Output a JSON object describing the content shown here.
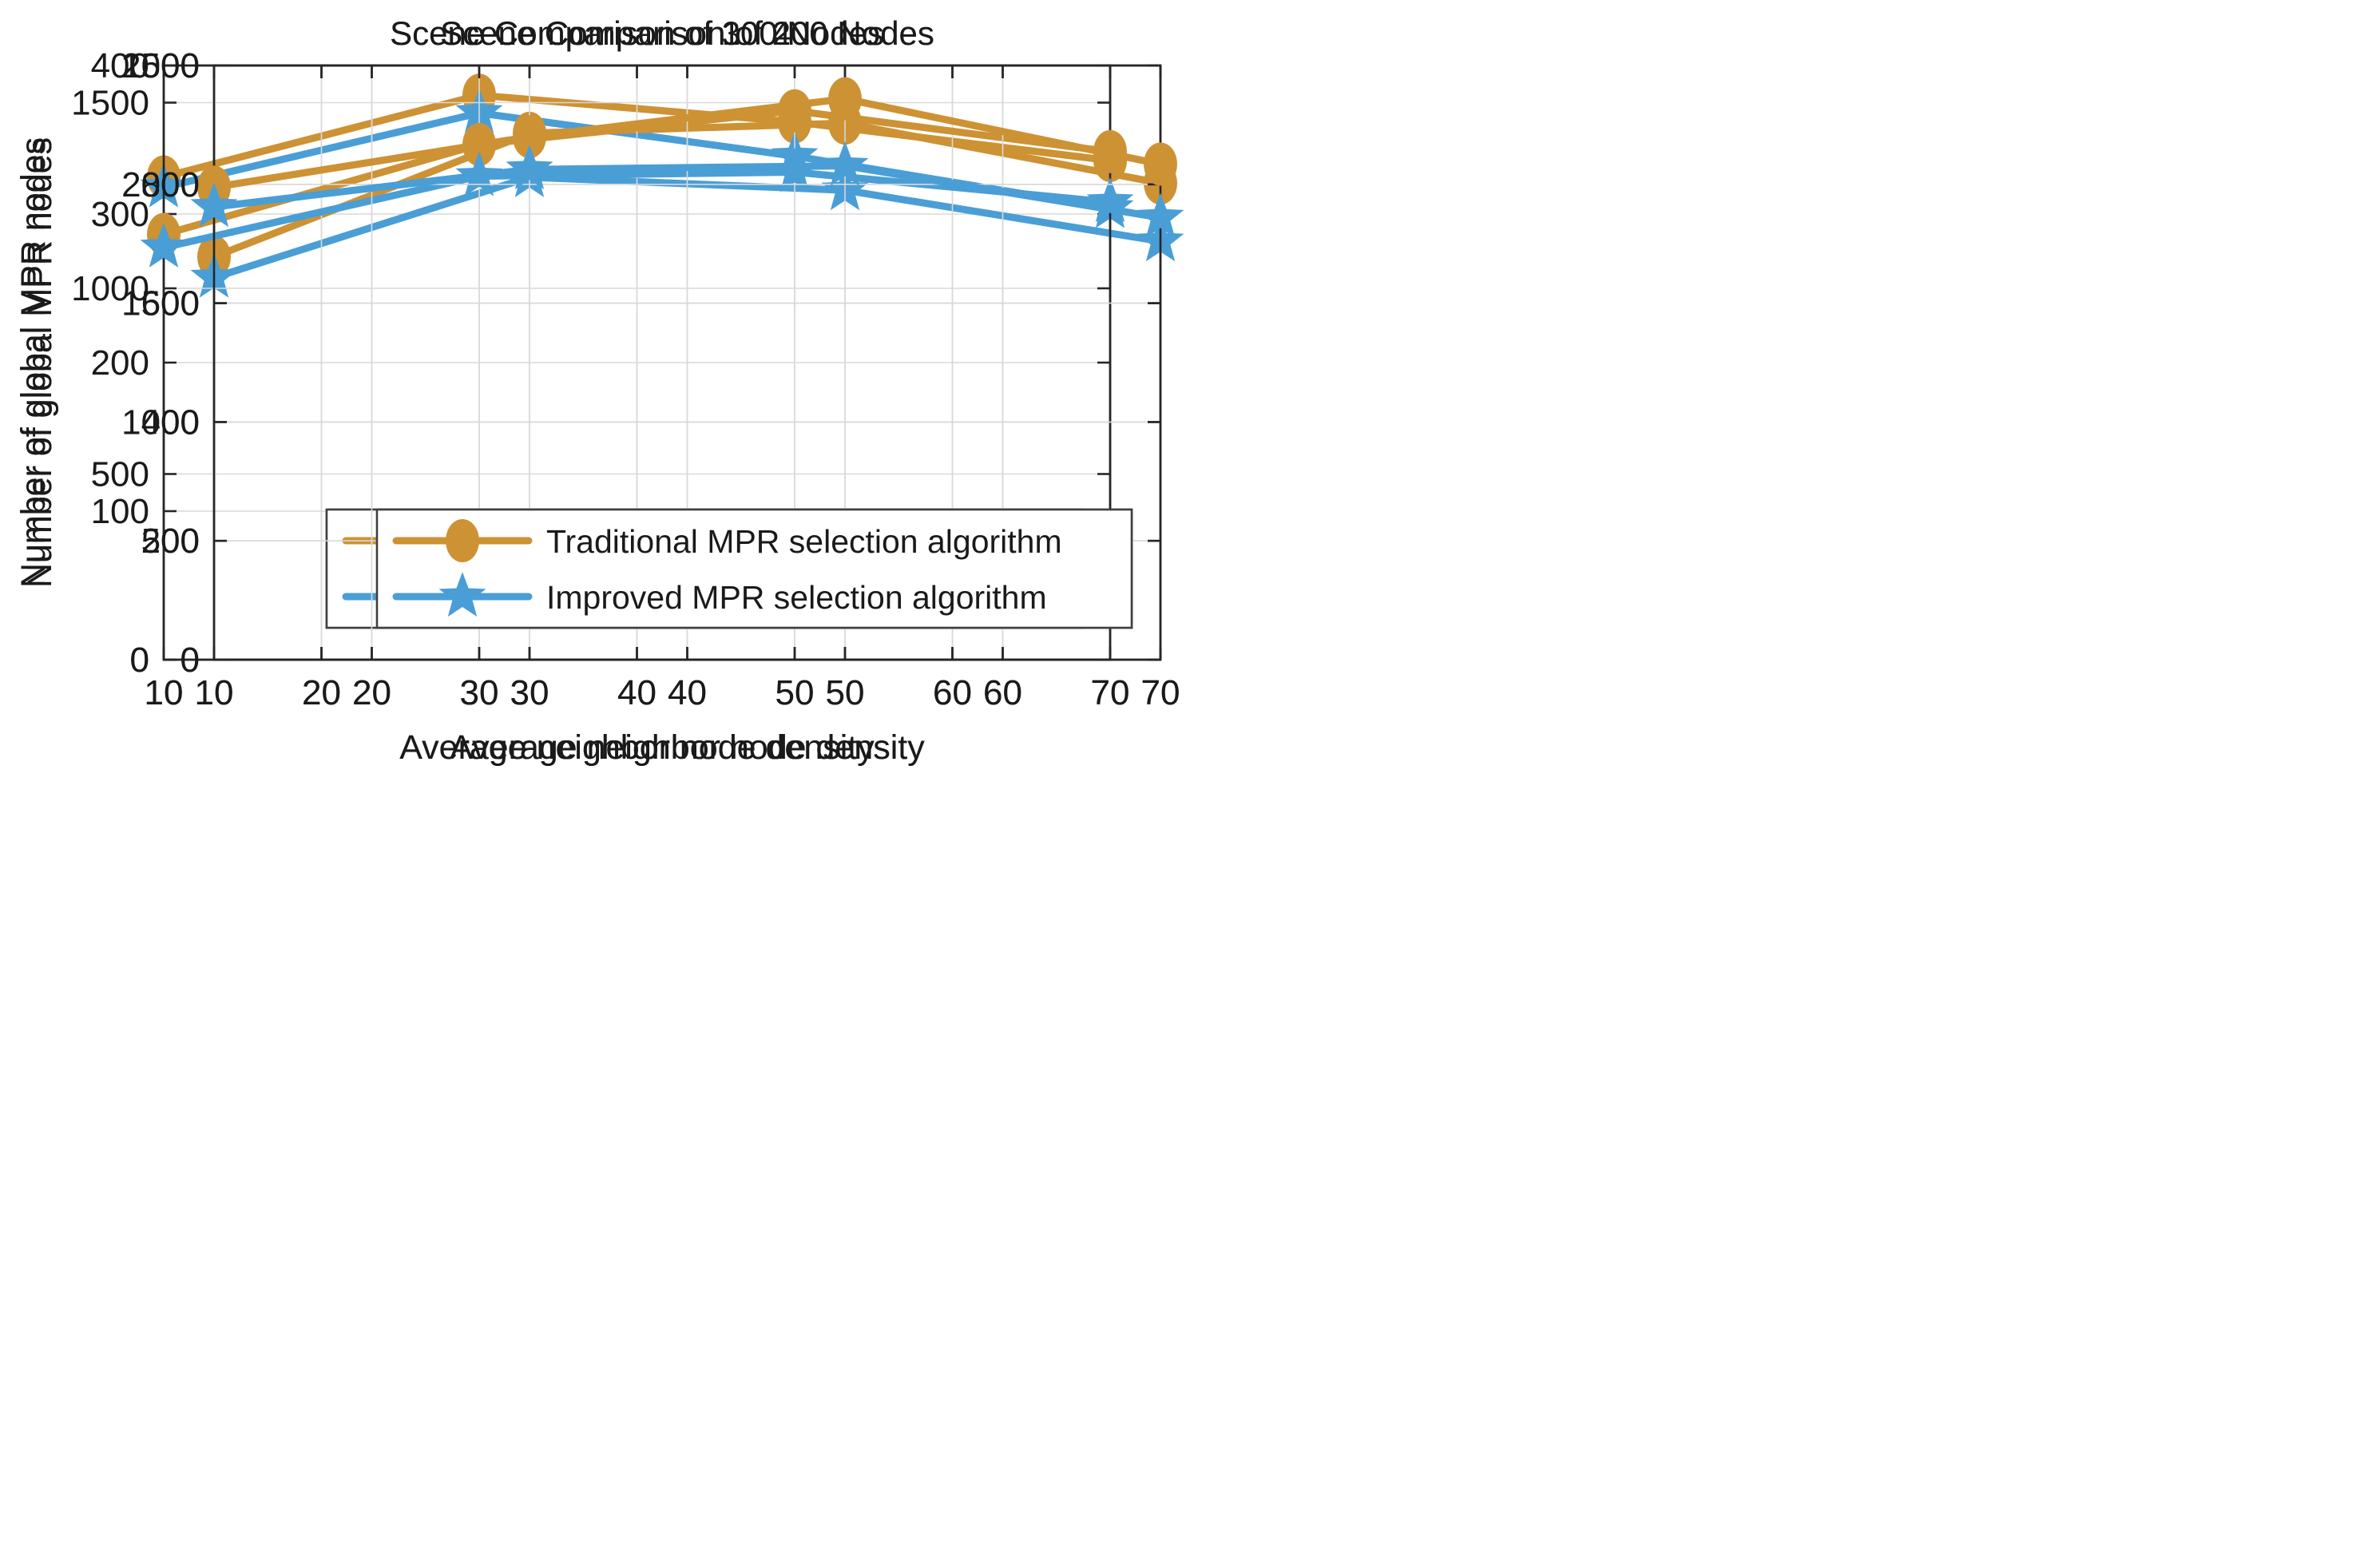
{
  "figure": {
    "background": "#ffffff",
    "text_color": "#1a1a1a",
    "axis_color": "#262626",
    "grid_color": "#d9d9d9",
    "legend_border_color": "#404040",
    "legend_background": "#ffffff"
  },
  "colors": {
    "traditional": "#cd9234",
    "improved": "#4a9ed6"
  },
  "chart_data": [
    {
      "type": "line",
      "title": "Scene Comparison of 100 Nodes",
      "xlabel": "Average neighbor node density",
      "ylabel": "Number of global MPR nodes",
      "x": [
        10,
        30,
        50,
        70
      ],
      "xticks": [
        10,
        20,
        30,
        40,
        50,
        60,
        70
      ],
      "xlim": [
        10,
        70
      ],
      "yticks": [
        0,
        100,
        200,
        300,
        400
      ],
      "ylim": [
        0,
        400
      ],
      "grid": true,
      "legend_position": "inside-bottom-right",
      "series": [
        {
          "name": "Traditional MPR selection algorithm",
          "marker": "circle",
          "color_key": "traditional",
          "values": [
            325,
            380,
            362,
            336
          ]
        },
        {
          "name": "Improved MPR selection algorithm",
          "marker": "star",
          "color_key": "improved",
          "values": [
            318,
            368,
            339,
            304
          ]
        }
      ]
    },
    {
      "type": "line",
      "title": "Scene Comparison of 200 Nodes",
      "xlabel": "Average neighbor node density",
      "ylabel": "Number of global MPR nodes",
      "x": [
        10,
        30,
        50,
        70
      ],
      "xticks": [
        10,
        20,
        30,
        40,
        50,
        60,
        70
      ],
      "xlim": [
        10,
        70
      ],
      "yticks": [
        0,
        200,
        400,
        600,
        800,
        1000
      ],
      "ylim": [
        0,
        1000
      ],
      "grid": true,
      "legend_position": "inside-bottom-right",
      "series": [
        {
          "name": "Traditional MPR selection algorithm",
          "marker": "circle",
          "color_key": "traditional",
          "values": [
            678,
            886,
            903,
            802
          ]
        },
        {
          "name": "Improved MPR selection algorithm",
          "marker": "star",
          "color_key": "improved",
          "values": [
            643,
            812,
            790,
            704
          ]
        }
      ]
    },
    {
      "type": "line",
      "title": "Scene Comparison of 300 Nodes",
      "xlabel": "Average neighbor node density",
      "ylabel": "Number of global MPR nodes",
      "x": [
        10,
        30,
        50,
        70
      ],
      "xticks": [
        10,
        20,
        30,
        40,
        50,
        60,
        70
      ],
      "xlim": [
        10,
        70
      ],
      "yticks": [
        0,
        500,
        1000,
        1500
      ],
      "ylim": [
        0,
        1600
      ],
      "grid": true,
      "legend_position": "inside-bottom-right",
      "series": [
        {
          "name": "Traditional MPR selection algorithm",
          "marker": "circle",
          "color_key": "traditional",
          "values": [
            1145,
            1387,
            1478,
            1368
          ]
        },
        {
          "name": "Improved MPR selection algorithm",
          "marker": "star",
          "color_key": "improved",
          "values": [
            1110,
            1302,
            1313,
            1232
          ]
        }
      ]
    },
    {
      "type": "line",
      "title": "Scene Comparison of 400 Nodes",
      "xlabel": "Average neighbor node density",
      "ylabel": "Number of global MPR nodes",
      "x": [
        10,
        30,
        50,
        70
      ],
      "xticks": [
        10,
        20,
        30,
        40,
        50,
        60,
        70
      ],
      "xlim": [
        10,
        70
      ],
      "yticks": [
        0,
        500,
        1000,
        1500,
        2000,
        2500
      ],
      "ylim": [
        0,
        2500
      ],
      "grid": true,
      "legend_position": "inside-bottom-right",
      "series": [
        {
          "name": "Traditional MPR selection algorithm",
          "marker": "circle",
          "color_key": "traditional",
          "values": [
            1988,
            2200,
            2360,
            2085
          ]
        },
        {
          "name": "Improved MPR selection algorithm",
          "marker": "star",
          "color_key": "improved",
          "values": [
            1905,
            2063,
            2078,
            1860
          ]
        }
      ]
    }
  ]
}
